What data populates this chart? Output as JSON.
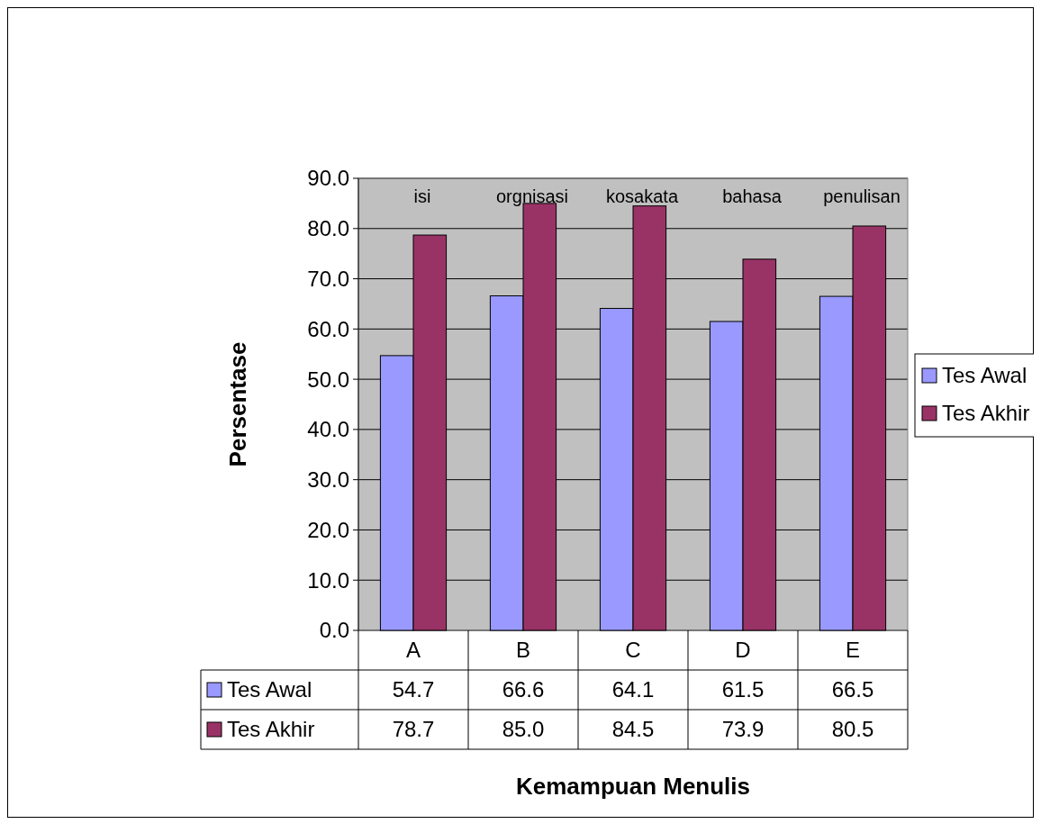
{
  "chart_data": {
    "type": "bar",
    "xlabel": "Kemampuan Menulis",
    "ylabel": "Persentase",
    "categories": [
      "A",
      "B",
      "C",
      "D",
      "E"
    ],
    "series": [
      {
        "name": "Tes Awal",
        "color": "#9999ff",
        "values": [
          54.7,
          66.6,
          64.1,
          61.5,
          66.5
        ],
        "value_labels": [
          "54.7",
          "66.6",
          "64.1",
          "61.5",
          "66.5"
        ]
      },
      {
        "name": "Tes Akhir",
        "color": "#993366",
        "values": [
          78.7,
          85.0,
          84.5,
          73.9,
          80.5
        ],
        "value_labels": [
          "78.7",
          "85.0",
          "84.5",
          "73.9",
          "80.5"
        ]
      }
    ],
    "ylim": [
      0,
      90
    ],
    "yticks": [
      {
        "value": 0,
        "label": "0.0"
      },
      {
        "value": 10,
        "label": "10.0"
      },
      {
        "value": 20,
        "label": "20.0"
      },
      {
        "value": 30,
        "label": "30.0"
      },
      {
        "value": 40,
        "label": "40.0"
      },
      {
        "value": 50,
        "label": "50.0"
      },
      {
        "value": 60,
        "label": "60.0"
      },
      {
        "value": 70,
        "label": "70.0"
      },
      {
        "value": 80,
        "label": "80.0"
      },
      {
        "value": 90,
        "label": "90.0"
      }
    ],
    "grid": "y",
    "legend": "right",
    "annotations": [
      "isi",
      "orgnisasi",
      "kosakata",
      "bahasa",
      "penulisan"
    ]
  }
}
